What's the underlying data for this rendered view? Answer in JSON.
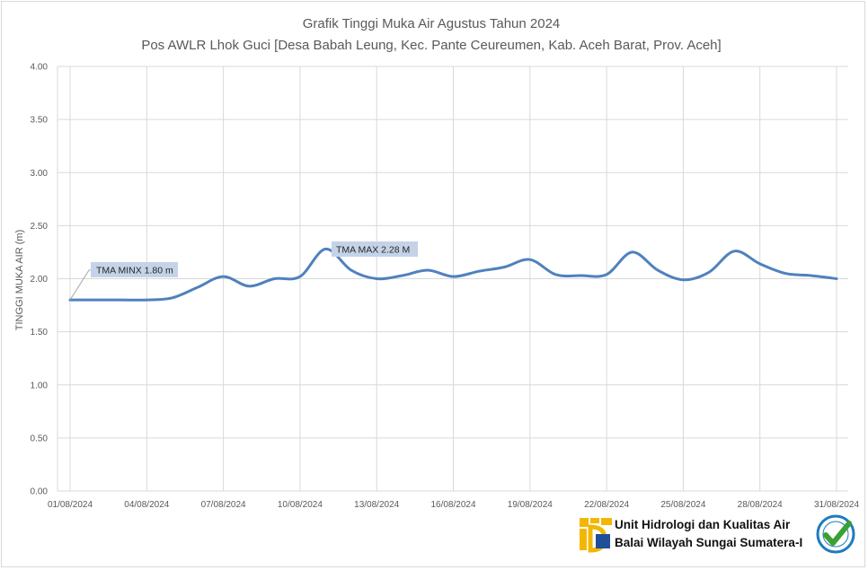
{
  "chart_data": {
    "type": "line",
    "title": "Grafik Tinggi Muka Air Agustus Tahun 2024",
    "subtitle": "Pos AWLR Lhok Guci [Desa Babah Leung, Kec. Pante Ceureumen, Kab. Aceh Barat, Prov. Aceh]",
    "xlabel": "",
    "ylabel": "TINGGI MUKA AIR (m)",
    "ylim": [
      0,
      4
    ],
    "grid": true,
    "y_ticks": [
      "0.00",
      "0.50",
      "1.00",
      "1.50",
      "2.00",
      "2.50",
      "3.00",
      "3.50",
      "4.00"
    ],
    "x_ticks": [
      "01/08/2024",
      "04/08/2024",
      "07/08/2024",
      "10/08/2024",
      "13/08/2024",
      "16/08/2024",
      "19/08/2024",
      "22/08/2024",
      "25/08/2024",
      "28/08/2024",
      "31/08/2024"
    ],
    "series_color": "#4f81bd",
    "x": [
      "01/08/2024",
      "02/08/2024",
      "03/08/2024",
      "04/08/2024",
      "05/08/2024",
      "06/08/2024",
      "07/08/2024",
      "08/08/2024",
      "09/08/2024",
      "10/08/2024",
      "11/08/2024",
      "12/08/2024",
      "13/08/2024",
      "14/08/2024",
      "15/08/2024",
      "16/08/2024",
      "17/08/2024",
      "18/08/2024",
      "19/08/2024",
      "20/08/2024",
      "21/08/2024",
      "22/08/2024",
      "23/08/2024",
      "24/08/2024",
      "25/08/2024",
      "26/08/2024",
      "27/08/2024",
      "28/08/2024",
      "29/08/2024",
      "30/08/2024",
      "31/08/2024"
    ],
    "series": [
      {
        "values": [
          1.8,
          1.8,
          1.8,
          1.8,
          1.82,
          1.92,
          2.02,
          1.93,
          2.0,
          2.02,
          2.28,
          2.08,
          2.0,
          2.03,
          2.08,
          2.02,
          2.07,
          2.11,
          2.18,
          2.04,
          2.03,
          2.04,
          2.25,
          2.08,
          1.99,
          2.06,
          2.26,
          2.14,
          2.05,
          2.03,
          2.0
        ]
      }
    ],
    "annotations": [
      {
        "label": "TMA MINX  1.80 m",
        "x": "01/08/2024",
        "y": 1.8
      },
      {
        "label": "TMA MAX  2.28  M",
        "x": "11/08/2024",
        "y": 2.28
      }
    ]
  },
  "footer": {
    "line1": "Unit Hidrologi dan Kualitas Air",
    "line2": "Balai Wilayah Sungai Sumatera-I",
    "logo_color": "#f2b705",
    "badge_color": "#1f7bbf",
    "check_color": "#3aa135"
  }
}
